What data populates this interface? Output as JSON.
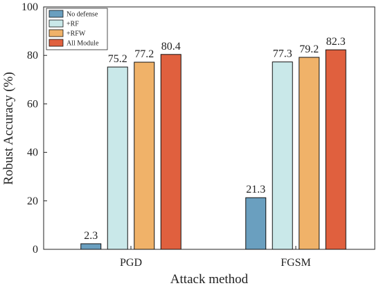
{
  "chart_data": {
    "type": "bar",
    "categories": [
      "PGD",
      "FGSM"
    ],
    "series": [
      {
        "name": "No defense",
        "values": [
          2.3,
          21.3
        ],
        "color": "#6a9fbf"
      },
      {
        "name": "+RF",
        "values": [
          75.2,
          77.3
        ],
        "color": "#c9e8e9"
      },
      {
        "name": "+RFW",
        "values": [
          77.2,
          79.2
        ],
        "color": "#f0b269"
      },
      {
        "name": "All Module",
        "values": [
          80.4,
          82.3
        ],
        "color": "#e0603e"
      }
    ],
    "data_labels": [
      [
        "2.3",
        "75.2",
        "77.2",
        "80.4"
      ],
      [
        "21.3",
        "77.3",
        "79.2",
        "82.3"
      ]
    ],
    "xlabel": "Attack method",
    "ylabel": "Robust Accuracy (%)",
    "ylim": [
      0,
      100
    ],
    "yticks": [
      0,
      20,
      40,
      60,
      80,
      100
    ],
    "grid": false,
    "legend_position": "top-left"
  }
}
